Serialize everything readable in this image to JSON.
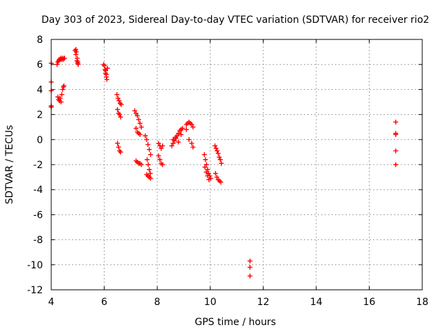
{
  "chart_data": {
    "type": "scatter",
    "title": "Day 303 of 2023, Sidereal Day-to-day VTEC variation (SDTVAR) for receiver rio2",
    "xlabel": "GPS time / hours",
    "ylabel": "SDTVAR / TECUs",
    "xlim": [
      4,
      18
    ],
    "ylim": [
      -12,
      8
    ],
    "xticks": [
      4,
      6,
      8,
      10,
      12,
      14,
      16,
      18
    ],
    "yticks": [
      -12,
      -10,
      -8,
      -6,
      -4,
      -2,
      0,
      2,
      4,
      6,
      8
    ],
    "grid": true,
    "marker": "+",
    "colors": {
      "points": "#ff0000",
      "axes": "#000000",
      "grid": "#a0a0a0"
    },
    "series": [
      {
        "name": "SDTVAR",
        "x": [
          4.0,
          4.0,
          4.0,
          4.0,
          4.0,
          4.22,
          4.25,
          4.28,
          4.3,
          4.33,
          4.36,
          4.39,
          4.42,
          4.45,
          4.48,
          4.5,
          4.25,
          4.28,
          4.31,
          4.34,
          4.37,
          4.4,
          4.43,
          4.46,
          4.48,
          4.9,
          4.93,
          4.95,
          4.98,
          5.0,
          5.02,
          4.93,
          4.97,
          5.0,
          5.98,
          6.0,
          6.03,
          6.05,
          6.08,
          6.1,
          6.12,
          6.05,
          6.08,
          6.48,
          6.52,
          6.56,
          6.6,
          6.64,
          6.5,
          6.54,
          6.58,
          6.62,
          6.5,
          6.54,
          6.58,
          6.62,
          7.15,
          7.2,
          7.25,
          7.3,
          7.35,
          7.4,
          7.2,
          7.25,
          7.3,
          7.35,
          7.2,
          7.25,
          7.3,
          7.35,
          7.4,
          7.55,
          7.6,
          7.65,
          7.7,
          7.75,
          7.62,
          7.66,
          7.7,
          7.74,
          7.6,
          7.65,
          7.7,
          7.75,
          8.05,
          8.1,
          8.15,
          8.2,
          8.05,
          8.1,
          8.15,
          8.2,
          8.55,
          8.6,
          8.65,
          8.7,
          8.75,
          8.8,
          8.85,
          8.9,
          8.95,
          8.6,
          8.7,
          8.8,
          8.9,
          9.1,
          9.15,
          9.2,
          9.25,
          9.3,
          9.35,
          9.1,
          9.2,
          9.3,
          9.35,
          9.78,
          9.82,
          9.86,
          9.9,
          9.94,
          9.98,
          10.02,
          9.8,
          9.85,
          9.9,
          9.95,
          10.18,
          10.22,
          10.26,
          10.3,
          10.34,
          10.38,
          10.42,
          10.2,
          10.25,
          10.3,
          10.35,
          10.4,
          11.5,
          11.5,
          11.5,
          17.0,
          17.0,
          17.0,
          17.0,
          17.0
        ],
        "y": [
          6.1,
          4.6,
          3.9,
          2.7,
          2.6,
          6.0,
          6.2,
          6.3,
          6.4,
          6.4,
          6.5,
          6.4,
          6.5,
          6.4,
          6.5,
          6.5,
          3.4,
          3.2,
          3.1,
          3.3,
          3.0,
          3.6,
          4.0,
          4.2,
          4.3,
          7.1,
          7.2,
          7.0,
          6.5,
          6.2,
          6.0,
          6.8,
          6.3,
          6.1,
          6.0,
          5.9,
          5.6,
          5.3,
          5.0,
          4.8,
          5.7,
          5.5,
          5.2,
          3.6,
          3.3,
          3.1,
          2.9,
          2.8,
          2.4,
          2.1,
          2.0,
          1.8,
          -0.3,
          -0.6,
          -0.9,
          -1.0,
          2.3,
          2.1,
          1.9,
          1.6,
          1.3,
          1.0,
          0.9,
          0.6,
          0.5,
          0.4,
          -1.7,
          -1.8,
          -1.9,
          -1.9,
          -2.0,
          0.3,
          0.0,
          -0.4,
          -0.8,
          -1.2,
          -1.6,
          -2.0,
          -2.4,
          -2.7,
          -2.8,
          -2.9,
          -3.0,
          -3.1,
          -0.3,
          -0.5,
          -0.7,
          -0.5,
          -1.3,
          -1.6,
          -1.9,
          -2.0,
          -0.5,
          -0.3,
          -0.1,
          0.1,
          0.3,
          0.5,
          0.7,
          0.8,
          0.9,
          0.0,
          0.2,
          -0.2,
          0.4,
          1.2,
          1.3,
          1.4,
          1.3,
          1.2,
          1.0,
          0.8,
          0.0,
          -0.3,
          -0.6,
          -1.2,
          -1.6,
          -2.0,
          -2.4,
          -2.7,
          -2.9,
          -3.1,
          -2.2,
          -2.6,
          -2.9,
          -3.2,
          -0.5,
          -0.7,
          -0.9,
          -1.1,
          -1.4,
          -1.6,
          -1.9,
          -2.7,
          -3.0,
          -3.2,
          -3.3,
          -3.4,
          -9.7,
          -10.2,
          -10.9,
          1.4,
          0.5,
          0.4,
          -0.9,
          -2.0
        ]
      }
    ]
  }
}
